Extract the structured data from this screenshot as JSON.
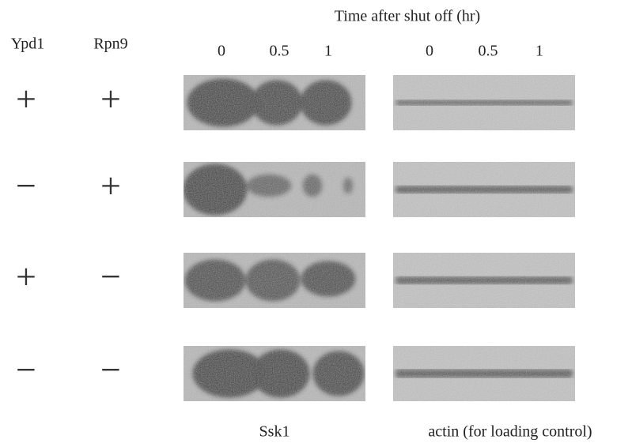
{
  "title": "Time after shut off (hr)",
  "genotype_headers": [
    "Ypd1",
    "Rpn9"
  ],
  "ssk1_times": [
    "0",
    "0.5",
    "1"
  ],
  "actin_times": [
    "0",
    "0.5",
    "1"
  ],
  "rows": [
    [
      "+",
      "+"
    ],
    [
      "−",
      "+"
    ],
    [
      "+",
      "−"
    ],
    [
      "−",
      "−"
    ]
  ],
  "ssk1_label": "Ssk1",
  "actin_label": "actin (for loading control)"
}
